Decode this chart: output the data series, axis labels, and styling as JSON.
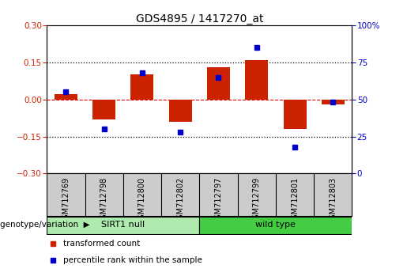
{
  "title": "GDS4895 / 1417270_at",
  "samples": [
    "GSM712769",
    "GSM712798",
    "GSM712800",
    "GSM712802",
    "GSM712797",
    "GSM712799",
    "GSM712801",
    "GSM712803"
  ],
  "transformed_counts": [
    0.02,
    -0.08,
    0.1,
    -0.09,
    0.13,
    0.16,
    -0.12,
    -0.02
  ],
  "percentile_ranks": [
    55,
    30,
    68,
    28,
    65,
    85,
    18,
    48
  ],
  "groups": [
    {
      "label": "SIRT1 null",
      "start": 0,
      "end": 4,
      "color": "#aeeaae"
    },
    {
      "label": "wild type",
      "start": 4,
      "end": 8,
      "color": "#44cc44"
    }
  ],
  "bar_color": "#cc2200",
  "dot_color": "#0000cc",
  "ylim_left": [
    -0.3,
    0.3
  ],
  "ylim_right": [
    0,
    100
  ],
  "yticks_left": [
    -0.3,
    -0.15,
    0.0,
    0.15,
    0.3
  ],
  "yticks_right": [
    0,
    25,
    50,
    75,
    100
  ],
  "hline_color": "#dd0000",
  "dotted_line_color": "black",
  "background_color": "#ffffff",
  "legend_items": [
    "transformed count",
    "percentile rank within the sample"
  ],
  "genotype_label": "genotype/variation"
}
